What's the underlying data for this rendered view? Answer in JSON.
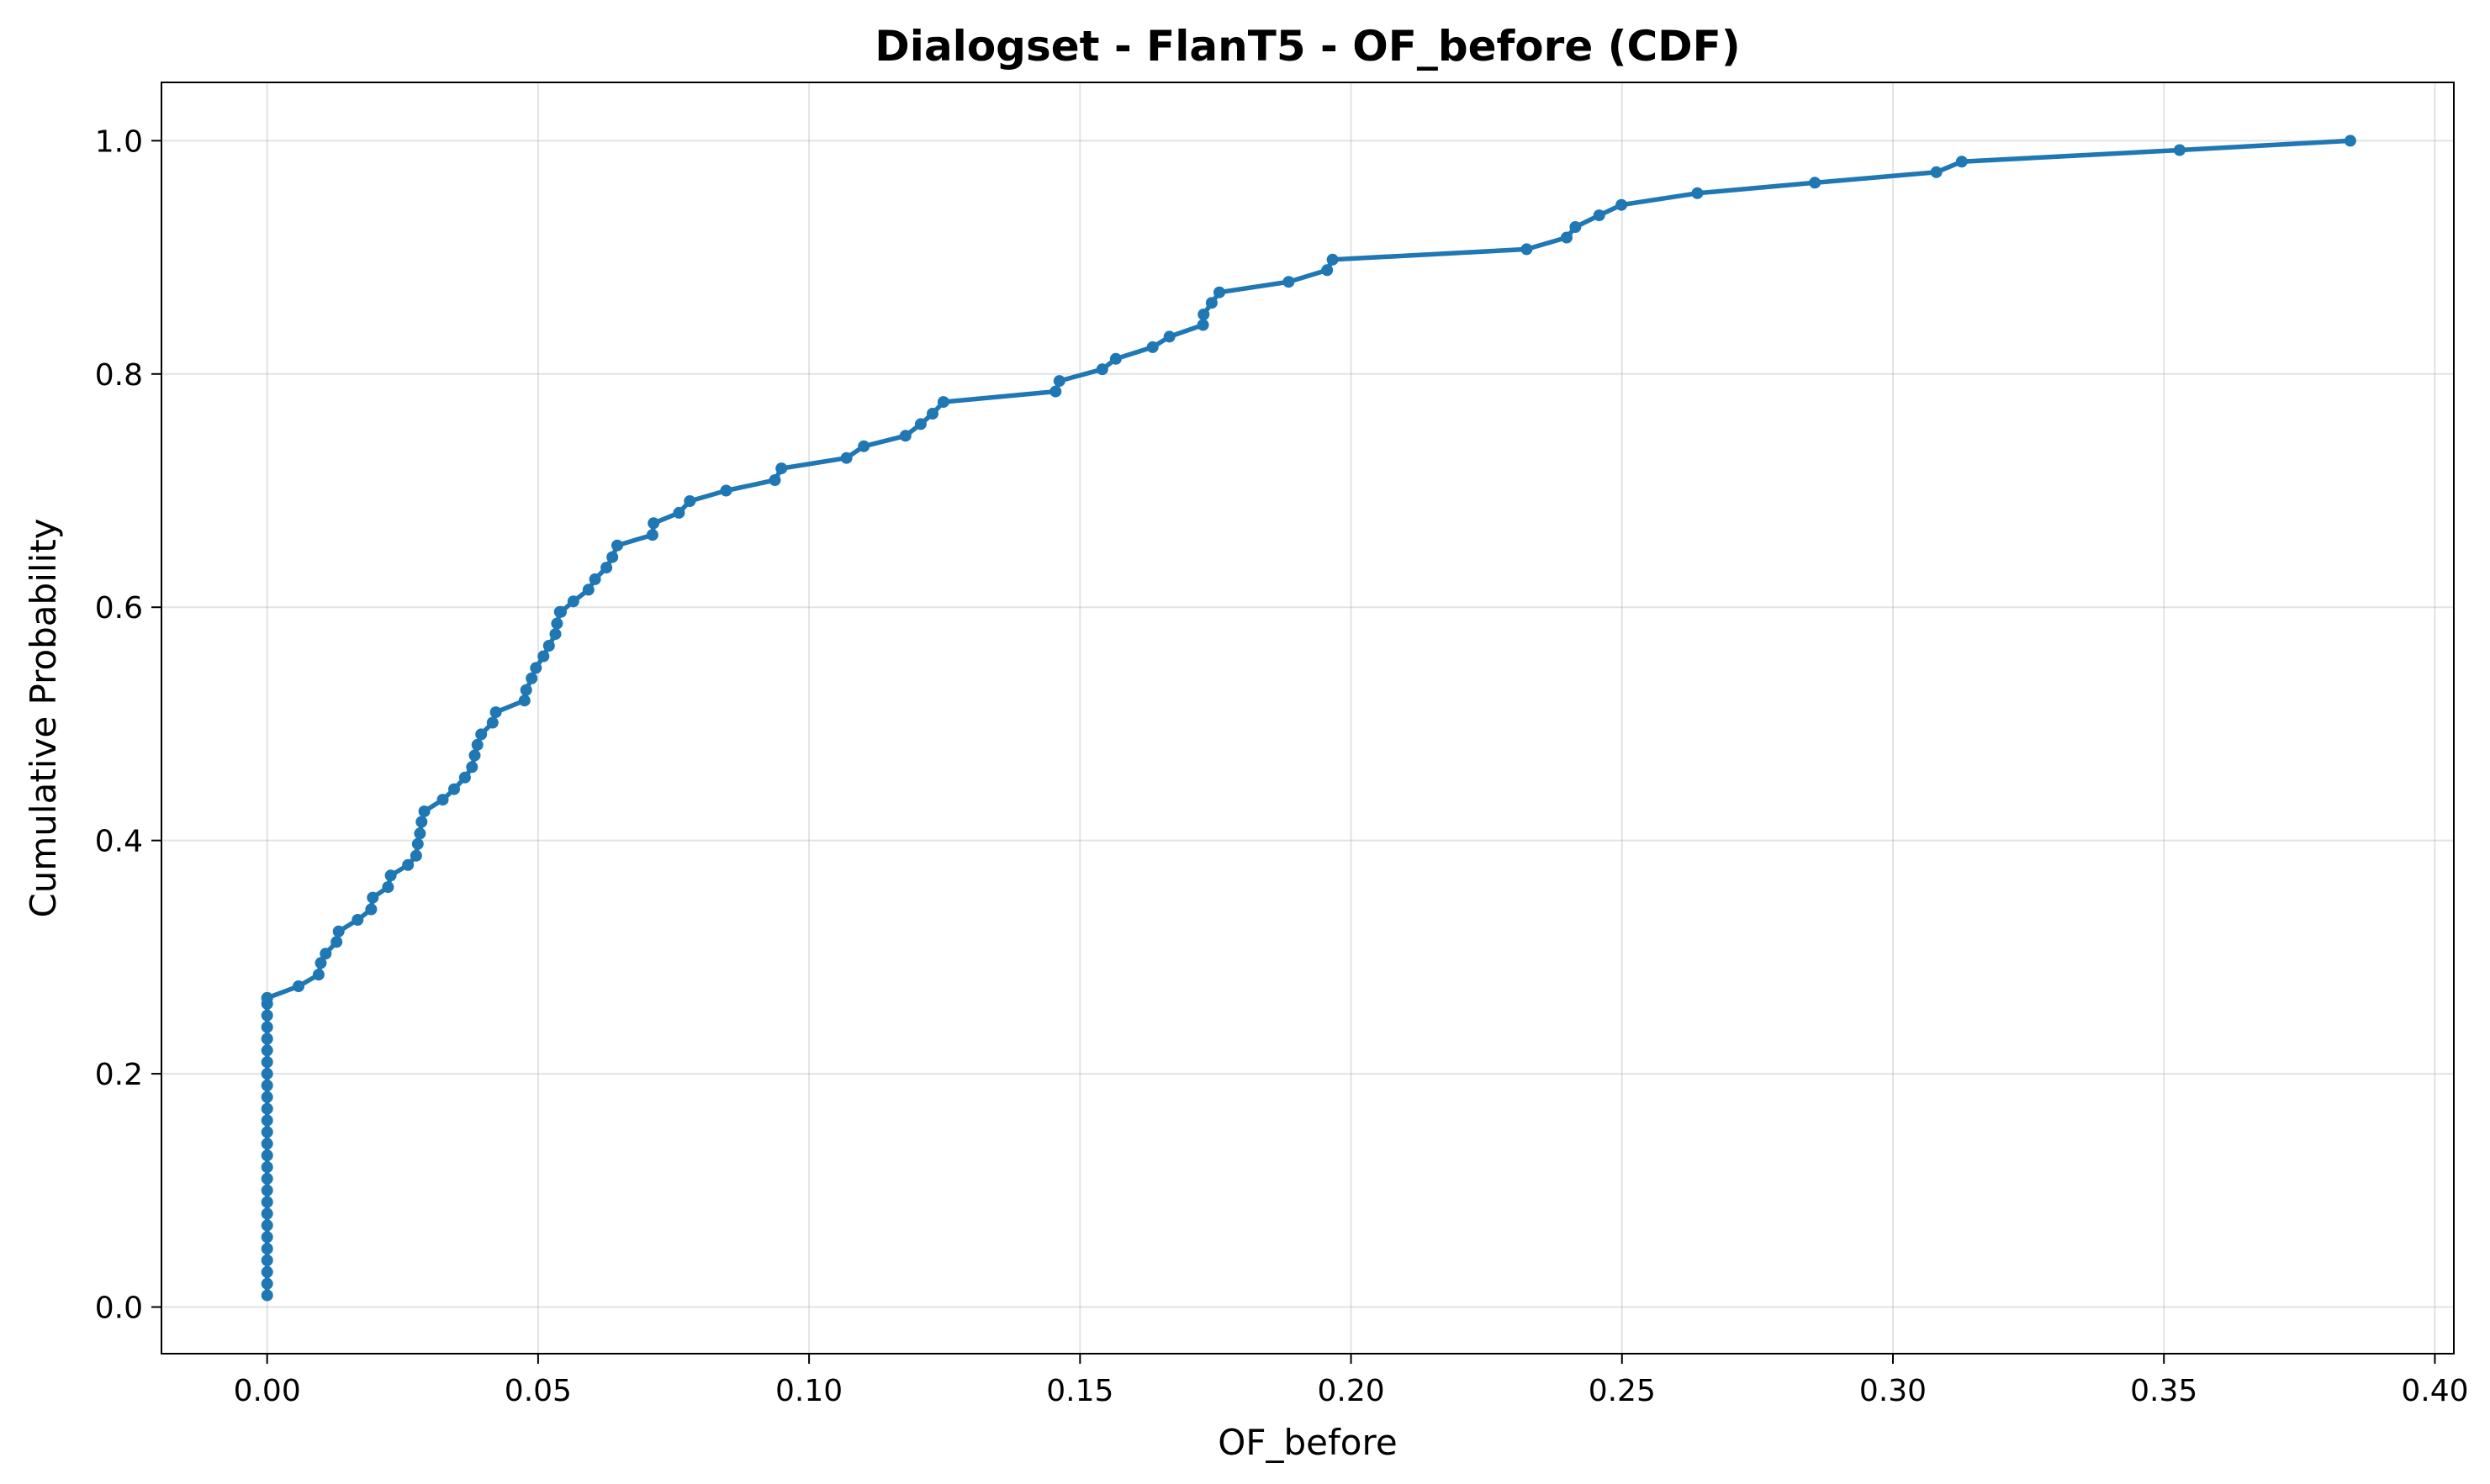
{
  "chart_data": {
    "type": "line",
    "title": "Dialogset - FlanT5 - OF_before (CDF)",
    "xlabel": "OF_before",
    "ylabel": "Cumulative Probability",
    "xlim": [
      -0.0195,
      0.4035
    ],
    "ylim": [
      -0.04,
      1.05
    ],
    "xticks": [
      0.0,
      0.05,
      0.1,
      0.15,
      0.2,
      0.25,
      0.3,
      0.35,
      0.4
    ],
    "xtick_labels": [
      "0.00",
      "0.05",
      "0.10",
      "0.15",
      "0.20",
      "0.25",
      "0.30",
      "0.35",
      "0.40"
    ],
    "yticks": [
      0.0,
      0.2,
      0.4,
      0.6,
      0.8,
      1.0
    ],
    "ytick_labels": [
      "0.0",
      "0.2",
      "0.4",
      "0.6",
      "0.8",
      "1.0"
    ],
    "grid": true,
    "colors": {
      "series": "#1f77b4"
    },
    "series": [
      {
        "x": [
          0,
          0,
          0,
          0,
          0,
          0,
          0,
          0,
          0,
          0,
          0,
          0,
          0,
          0,
          0,
          0,
          0,
          0,
          0,
          0,
          0,
          0,
          0,
          0,
          0,
          0,
          0,
          0,
          0.0058,
          0.0095,
          0.0099,
          0.0108,
          0.0128,
          0.0132,
          0.0167,
          0.0192,
          0.0195,
          0.0223,
          0.0228,
          0.026,
          0.0275,
          0.0278,
          0.0282,
          0.0285,
          0.029,
          0.0324,
          0.0345,
          0.0365,
          0.0378,
          0.0383,
          0.0388,
          0.0395,
          0.0416,
          0.0422,
          0.0475,
          0.0478,
          0.0488,
          0.0496,
          0.051,
          0.052,
          0.0532,
          0.0535,
          0.054,
          0.0542,
          0.0565,
          0.0593,
          0.0605,
          0.0626,
          0.0637,
          0.0646,
          0.0711,
          0.0713,
          0.076,
          0.078,
          0.0847,
          0.0937,
          0.0949,
          0.1069,
          0.1101,
          0.1178,
          0.1206,
          0.1228,
          0.1248,
          0.1455,
          0.1462,
          0.1541,
          0.1566,
          0.1634,
          0.1665,
          0.1727,
          0.1728,
          0.1743,
          0.1757,
          0.1885,
          0.1956,
          0.1966,
          0.2324,
          0.2398,
          0.2414,
          0.2458,
          0.2499,
          0.2639,
          0.2856,
          0.308,
          0.3127,
          0.3529,
          0.3844
        ],
        "y": [
          0.01,
          0.02,
          0.03,
          0.04,
          0.05,
          0.06,
          0.07,
          0.08,
          0.09,
          0.1,
          0.11,
          0.12,
          0.13,
          0.14,
          0.15,
          0.16,
          0.17,
          0.18,
          0.19,
          0.2,
          0.21,
          0.22,
          0.23,
          0.24,
          0.25,
          0.26,
          0.265,
          0.265,
          0.275,
          0.285,
          0.295,
          0.303,
          0.313,
          0.322,
          0.332,
          0.341,
          0.351,
          0.36,
          0.37,
          0.379,
          0.387,
          0.397,
          0.406,
          0.416,
          0.425,
          0.435,
          0.444,
          0.454,
          0.463,
          0.473,
          0.482,
          0.491,
          0.501,
          0.51,
          0.52,
          0.529,
          0.539,
          0.548,
          0.558,
          0.567,
          0.577,
          0.586,
          0.596,
          0.596,
          0.605,
          0.615,
          0.624,
          0.634,
          0.643,
          0.653,
          0.662,
          0.672,
          0.681,
          0.691,
          0.7,
          0.709,
          0.719,
          0.728,
          0.738,
          0.747,
          0.757,
          0.766,
          0.776,
          0.785,
          0.794,
          0.804,
          0.813,
          0.823,
          0.832,
          0.842,
          0.851,
          0.861,
          0.87,
          0.879,
          0.889,
          0.898,
          0.907,
          0.917,
          0.926,
          0.936,
          0.945,
          0.955,
          0.964,
          0.973,
          0.982,
          0.992,
          1.0
        ]
      }
    ]
  }
}
